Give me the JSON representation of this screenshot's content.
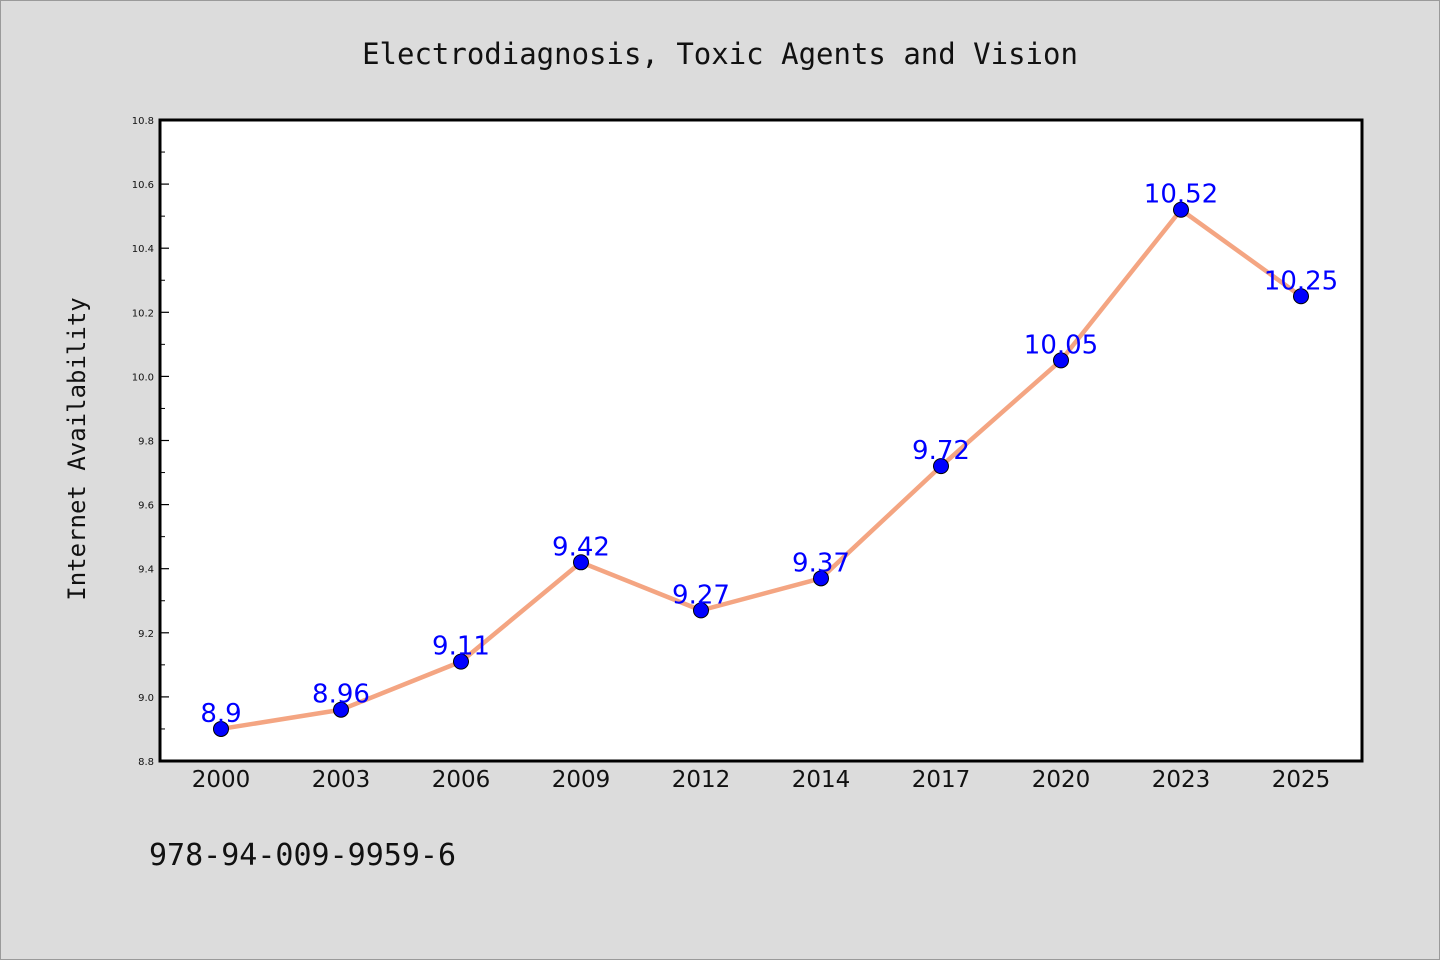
{
  "chart_data": {
    "type": "line",
    "title": "Electrodiagnosis, Toxic Agents and Vision",
    "xlabel": "",
    "ylabel": "Internet Availability",
    "categories": [
      "2000",
      "2003",
      "2006",
      "2009",
      "2012",
      "2014",
      "2017",
      "2020",
      "2023",
      "2025"
    ],
    "series": [
      {
        "values": [
          8.9,
          8.96,
          9.11,
          9.42,
          9.27,
          9.37,
          9.72,
          10.05,
          10.52,
          10.25
        ]
      }
    ],
    "data_labels": [
      "8.9",
      "8.96",
      "9.11",
      "9.42",
      "9.27",
      "9.37",
      "9.72",
      "10.05",
      "10.52",
      "10.25"
    ],
    "ylim": [
      8.8,
      10.8
    ],
    "yticks": [
      "8.8",
      "9.0",
      "9.2",
      "9.4",
      "9.6",
      "9.8",
      "10.0",
      "10.2",
      "10.4",
      "10.6",
      "10.8"
    ],
    "grid": false,
    "legend": "none",
    "colors": {
      "line": "#f4a582",
      "marker": "#0000ff",
      "label": "#0000ff",
      "background": "#dcdcdc",
      "plot_background": "#ffffff"
    }
  },
  "footer": {
    "text": "978-94-009-9959-6"
  }
}
